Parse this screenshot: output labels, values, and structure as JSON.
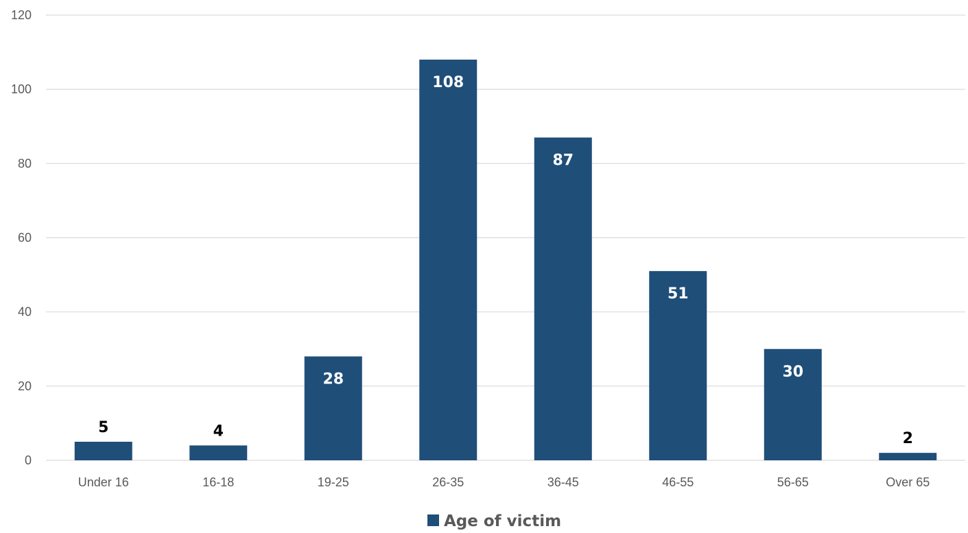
{
  "chart_data": {
    "type": "bar",
    "categories": [
      "Under 16",
      "16-18",
      "19-25",
      "26-35",
      "36-45",
      "46-55",
      "56-65",
      "Over 65"
    ],
    "series": [
      {
        "name": "Age of victim",
        "values": [
          5,
          4,
          28,
          108,
          87,
          51,
          30,
          2
        ],
        "color": "#1f4e79"
      }
    ],
    "ylim": [
      0,
      120
    ],
    "yticks": [
      0,
      20,
      40,
      60,
      80,
      100,
      120
    ],
    "grid": true,
    "legend": "bottom",
    "title": "",
    "xlabel": "",
    "ylabel": ""
  }
}
